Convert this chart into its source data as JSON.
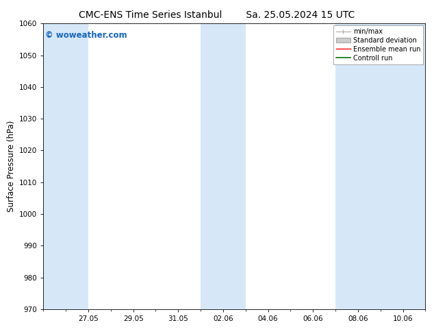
{
  "title_left": "CMC-ENS Time Series Istanbul",
  "title_right": "Sa. 25.05.2024 15 UTC",
  "ylabel": "Surface Pressure (hPa)",
  "ylim": [
    970,
    1060
  ],
  "yticks": [
    970,
    980,
    990,
    1000,
    1010,
    1020,
    1030,
    1040,
    1050,
    1060
  ],
  "total_days": 17,
  "xtick_positions": [
    2,
    4,
    6,
    8,
    10,
    12,
    14,
    16
  ],
  "xtick_labels": [
    "27.05",
    "29.05",
    "31.05",
    "02.06",
    "04.06",
    "06.06",
    "08.06",
    "10.06"
  ],
  "watermark": "© woweather.com",
  "watermark_color": "#1565c0",
  "bg_color": "#ffffff",
  "plot_bg_color": "#ffffff",
  "shaded_band_color": "#d6e8f8",
  "shaded_intervals": [
    [
      0,
      2
    ],
    [
      7,
      9
    ],
    [
      13,
      17
    ]
  ],
  "legend_labels": [
    "min/max",
    "Standard deviation",
    "Ensemble mean run",
    "Controll run"
  ],
  "legend_colors": [
    "#aaaaaa",
    "#cccccc",
    "#ff0000",
    "#007700"
  ],
  "title_fontsize": 10,
  "tick_fontsize": 7.5,
  "legend_fontsize": 7,
  "ylabel_fontsize": 8.5,
  "watermark_fontsize": 8.5
}
